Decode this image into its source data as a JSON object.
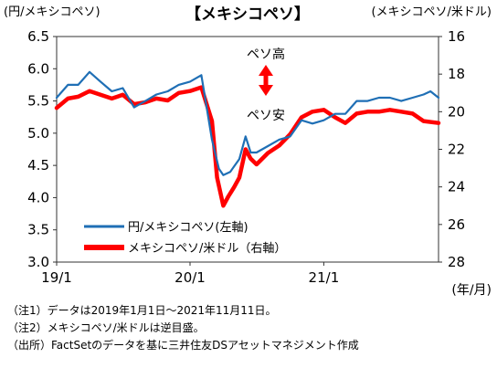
{
  "chart_data": {
    "type": "line",
    "title": "【メキシコペソ】",
    "left_axis_label": "(円/メキシコペソ)",
    "right_axis_label": "(メキシコペソ/米ドル)",
    "x_unit_label": "(年/月)",
    "x_range": [
      "2019-01-01",
      "2021-11-11"
    ],
    "x_ticks": [
      {
        "date": "2019-01-01",
        "label": "19/1"
      },
      {
        "date": "2020-01-01",
        "label": "20/1"
      },
      {
        "date": "2021-01-01",
        "label": "21/1"
      }
    ],
    "left_ylim": [
      3.0,
      6.5
    ],
    "left_yticks": [
      "3.0",
      "3.5",
      "4.0",
      "4.5",
      "5.0",
      "5.5",
      "6.0",
      "6.5"
    ],
    "right_ylim": [
      16,
      28
    ],
    "right_yticks": [
      "16",
      "18",
      "20",
      "22",
      "24",
      "26",
      "28"
    ],
    "right_axis_inverted": true,
    "grid": false,
    "annotation_top": "ペソ高",
    "annotation_bottom": "ペソ安",
    "legend_position": "bottom-left",
    "series": [
      {
        "name": "円/メキシコペソ(左軸)",
        "axis": "left",
        "color": "#1f6fb5",
        "points": [
          [
            "2019-01-01",
            5.55
          ],
          [
            "2019-02-01",
            5.75
          ],
          [
            "2019-03-01",
            5.75
          ],
          [
            "2019-04-01",
            5.95
          ],
          [
            "2019-05-01",
            5.8
          ],
          [
            "2019-06-01",
            5.65
          ],
          [
            "2019-07-01",
            5.7
          ],
          [
            "2019-08-01",
            5.4
          ],
          [
            "2019-09-01",
            5.5
          ],
          [
            "2019-10-01",
            5.6
          ],
          [
            "2019-11-01",
            5.65
          ],
          [
            "2019-12-01",
            5.75
          ],
          [
            "2020-01-01",
            5.8
          ],
          [
            "2020-02-01",
            5.9
          ],
          [
            "2020-03-01",
            4.9
          ],
          [
            "2020-03-20",
            4.45
          ],
          [
            "2020-04-01",
            4.35
          ],
          [
            "2020-04-20",
            4.4
          ],
          [
            "2020-05-15",
            4.6
          ],
          [
            "2020-06-01",
            4.95
          ],
          [
            "2020-06-15",
            4.7
          ],
          [
            "2020-07-01",
            4.7
          ],
          [
            "2020-08-01",
            4.8
          ],
          [
            "2020-09-01",
            4.9
          ],
          [
            "2020-10-01",
            4.95
          ],
          [
            "2020-11-01",
            5.2
          ],
          [
            "2020-12-01",
            5.15
          ],
          [
            "2021-01-01",
            5.2
          ],
          [
            "2021-02-01",
            5.3
          ],
          [
            "2021-03-01",
            5.3
          ],
          [
            "2021-04-01",
            5.5
          ],
          [
            "2021-05-01",
            5.5
          ],
          [
            "2021-06-01",
            5.55
          ],
          [
            "2021-07-01",
            5.55
          ],
          [
            "2021-08-01",
            5.5
          ],
          [
            "2021-09-01",
            5.55
          ],
          [
            "2021-10-01",
            5.6
          ],
          [
            "2021-10-20",
            5.65
          ],
          [
            "2021-11-11",
            5.55
          ]
        ]
      },
      {
        "name": "メキシコペソ/米ドル（右軸）",
        "axis": "right",
        "color": "#ff0000",
        "points": [
          [
            "2019-01-01",
            19.8
          ],
          [
            "2019-02-01",
            19.3
          ],
          [
            "2019-03-01",
            19.2
          ],
          [
            "2019-04-01",
            18.9
          ],
          [
            "2019-05-01",
            19.1
          ],
          [
            "2019-06-01",
            19.3
          ],
          [
            "2019-07-01",
            19.1
          ],
          [
            "2019-08-01",
            19.6
          ],
          [
            "2019-09-01",
            19.5
          ],
          [
            "2019-10-01",
            19.3
          ],
          [
            "2019-11-01",
            19.4
          ],
          [
            "2019-12-01",
            19.0
          ],
          [
            "2020-01-01",
            18.9
          ],
          [
            "2020-02-01",
            18.7
          ],
          [
            "2020-03-01",
            20.5
          ],
          [
            "2020-03-15",
            23.5
          ],
          [
            "2020-04-01",
            25.0
          ],
          [
            "2020-04-15",
            24.5
          ],
          [
            "2020-05-01",
            24.0
          ],
          [
            "2020-05-15",
            23.5
          ],
          [
            "2020-06-01",
            22.0
          ],
          [
            "2020-06-15",
            22.5
          ],
          [
            "2020-07-01",
            22.8
          ],
          [
            "2020-08-01",
            22.2
          ],
          [
            "2020-09-01",
            21.8
          ],
          [
            "2020-10-01",
            21.2
          ],
          [
            "2020-11-01",
            20.3
          ],
          [
            "2020-12-01",
            20.0
          ],
          [
            "2021-01-01",
            19.9
          ],
          [
            "2021-02-01",
            20.3
          ],
          [
            "2021-03-01",
            20.6
          ],
          [
            "2021-04-01",
            20.1
          ],
          [
            "2021-05-01",
            20.0
          ],
          [
            "2021-06-01",
            20.0
          ],
          [
            "2021-07-01",
            19.9
          ],
          [
            "2021-08-01",
            20.0
          ],
          [
            "2021-09-01",
            20.1
          ],
          [
            "2021-10-01",
            20.5
          ],
          [
            "2021-11-11",
            20.6
          ]
        ]
      }
    ]
  },
  "notes": [
    "（注1）データは2019年1月1日～2021年11月11日。",
    "（注2）メキシコペソ/米ドルは逆目盛。",
    "（出所）FactSetのデータを基に三井住友DSアセットマネジメント作成"
  ]
}
